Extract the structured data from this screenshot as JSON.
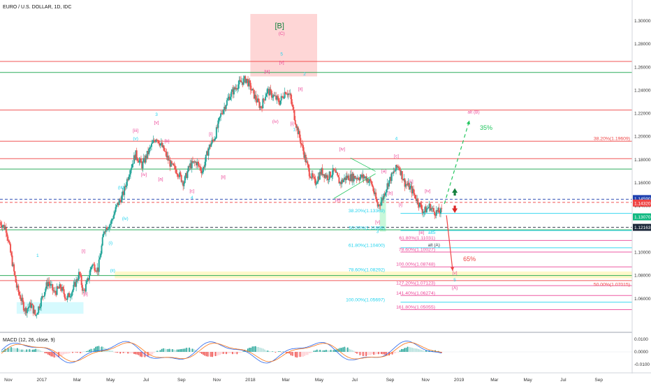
{
  "header": {
    "title": "EURO / U.S. DOLLAR, 1D, IDC"
  },
  "macd": {
    "label": "MACD (12, 26, close, 9)",
    "ticks": [
      "0.0100",
      "0.0000",
      "-0.0100"
    ]
  },
  "price_axis": {
    "ticks": [
      "1.30000",
      "1.28000",
      "1.26000",
      "1.24000",
      "1.22000",
      "1.20000",
      "1.18000",
      "1.16000",
      "1.14000",
      "1.12000",
      "1.10000",
      "1.08000",
      "1.06000"
    ],
    "badges": [
      {
        "text": "1.14590",
        "price": 1.1459,
        "color": "#1e40af"
      },
      {
        "text": "1.14320",
        "price": 1.1432,
        "color": "#ef4444"
      },
      {
        "text": "1.13070",
        "price": 1.1307,
        "color": "#10b981"
      },
      {
        "text": "1.12163",
        "price": 1.12163,
        "color": "#1e293b"
      }
    ]
  },
  "time_axis": {
    "labels": [
      "Nov",
      "2017",
      "Mar",
      "May",
      "Jul",
      "Sep",
      "Nov",
      "2018",
      "Mar",
      "May",
      "Jul",
      "Sep",
      "Nov",
      "2019",
      "Mar",
      "May",
      "Jul",
      "Sep"
    ]
  },
  "fib_labels": [
    {
      "text": "38.20%(1.19609)",
      "price": 1.19609,
      "color": "#ef4444"
    },
    {
      "text": "38.20%(1.13369)",
      "price": 1.13369,
      "color": "#22d3ee"
    },
    {
      "text": "50.00%(1.11886)",
      "price": 1.11886,
      "color": "#22d3ee"
    },
    {
      "text": "61.80%(1.11031)",
      "price": 1.11031,
      "color": "#ec4899"
    },
    {
      "text": "61.80%(1.10400)",
      "price": 1.104,
      "color": "#22d3ee"
    },
    {
      "text": "78.60%(1.10027)",
      "price": 1.10027,
      "color": "#ec4899"
    },
    {
      "text": "100.00%(1.08748)",
      "price": 1.08748,
      "color": "#ec4899"
    },
    {
      "text": "78.60%(1.08292)",
      "price": 1.08292,
      "color": "#22d3ee"
    },
    {
      "text": "127.20%(1.07123)",
      "price": 1.07123,
      "color": "#ec4899"
    },
    {
      "text": "50.00%(1.07015)",
      "price": 1.07015,
      "color": "#ef4444"
    },
    {
      "text": "141.40%(1.06274)",
      "price": 1.06274,
      "color": "#ec4899"
    },
    {
      "text": "100.00%(1.05697)",
      "price": 1.05697,
      "color": "#22d3ee"
    },
    {
      "text": "161.80%(1.05055)",
      "price": 1.05055,
      "color": "#ec4899"
    }
  ],
  "wave_labels": [
    {
      "text": "[B]",
      "date": 2018.14,
      "price": 1.2935,
      "color": "#15803d"
    },
    {
      "text": "(C)",
      "date": 2018.15,
      "price": 1.288,
      "color": "#ec4899"
    },
    {
      "text": "5",
      "date": 2018.15,
      "price": 1.27,
      "color": "#22d3ee"
    },
    {
      "text": "[v]",
      "date": 2018.15,
      "price": 1.263,
      "color": "#ec4899"
    },
    {
      "text": "[iii]",
      "date": 2018.08,
      "price": 1.255,
      "color": "#ec4899"
    },
    {
      "text": "2",
      "date": 2018.26,
      "price": 1.253,
      "color": "#22d3ee"
    },
    {
      "text": "[ii]",
      "date": 2018.24,
      "price": 1.24,
      "color": "#ec4899"
    },
    {
      "text": "(iv)",
      "date": 2018.12,
      "price": 1.212,
      "color": "#ec4899"
    },
    {
      "text": "[i]",
      "date": 2018.2,
      "price": 1.21,
      "color": "#ec4899"
    },
    {
      "text": "1",
      "date": 2018.21,
      "price": 1.205,
      "color": "#22d3ee"
    },
    {
      "text": "3",
      "date": 2017.55,
      "price": 1.218,
      "color": "#22d3ee"
    },
    {
      "text": "[v]",
      "date": 2017.55,
      "price": 1.211,
      "color": "#ec4899"
    },
    {
      "text": "[iii]",
      "date": 2017.45,
      "price": 1.204,
      "color": "#ec4899"
    },
    {
      "text": "(v)",
      "date": 2017.45,
      "price": 1.197,
      "color": "#22d3ee"
    },
    {
      "text": "[b]",
      "date": 2017.6,
      "price": 1.195,
      "color": "#ec4899"
    },
    {
      "text": "[i]",
      "date": 2017.81,
      "price": 1.201,
      "color": "#ec4899"
    },
    {
      "text": "[iv]",
      "date": 2017.49,
      "price": 1.166,
      "color": "#ec4899"
    },
    {
      "text": "[a]",
      "date": 2017.57,
      "price": 1.162,
      "color": "#ec4899"
    },
    {
      "text": "[c]",
      "date": 2017.72,
      "price": 1.152,
      "color": "#ec4899"
    },
    {
      "text": "4",
      "date": 2017.72,
      "price": 1.146,
      "color": "#22d3ee"
    },
    {
      "text": "[ii]",
      "date": 2017.87,
      "price": 1.164,
      "color": "#ec4899"
    },
    {
      "text": "(iii)",
      "date": 2017.38,
      "price": 1.155,
      "color": "#22d3ee"
    },
    {
      "text": "(iv)",
      "date": 2017.4,
      "price": 1.128,
      "color": "#22d3ee"
    },
    {
      "text": "(i)",
      "date": 2017.33,
      "price": 1.107,
      "color": "#22d3ee"
    },
    {
      "text": "(ii)",
      "date": 2017.34,
      "price": 1.083,
      "color": "#22d3ee"
    },
    {
      "text": "[i]",
      "date": 2017.2,
      "price": 1.1,
      "color": "#ec4899"
    },
    {
      "text": "[ii]",
      "date": 2017.21,
      "price": 1.063,
      "color": "#ec4899"
    },
    {
      "text": "1",
      "date": 2016.98,
      "price": 1.096,
      "color": "#22d3ee"
    },
    {
      "text": "[iv]",
      "date": 2018.44,
      "price": 1.188,
      "color": "#ec4899"
    },
    {
      "text": "[a]",
      "date": 2018.64,
      "price": 1.169,
      "color": "#ec4899"
    },
    {
      "text": "4",
      "date": 2018.7,
      "price": 1.197,
      "color": "#22d3ee"
    },
    {
      "text": "[c]",
      "date": 2018.7,
      "price": 1.182,
      "color": "#ec4899"
    },
    {
      "text": "[b]",
      "date": 2018.67,
      "price": 1.15,
      "color": "#ec4899"
    },
    {
      "text": "[iii]",
      "date": 2018.42,
      "price": 1.144,
      "color": "#ec4899"
    },
    {
      "text": "[v]",
      "date": 2018.61,
      "price": 1.125,
      "color": "#ec4899"
    },
    {
      "text": "3",
      "date": 2018.61,
      "price": 1.117,
      "color": "#22d3ee"
    },
    {
      "text": "[ii]",
      "date": 2018.77,
      "price": 1.16,
      "color": "#ec4899"
    },
    {
      "text": "[iv]",
      "date": 2018.85,
      "price": 1.152,
      "color": "#ec4899"
    },
    {
      "text": "[i]",
      "date": 2018.72,
      "price": 1.14,
      "color": "#ec4899"
    },
    {
      "text": "[iii]",
      "date": 2018.82,
      "price": 1.116,
      "color": "#ec4899"
    },
    {
      "text": "alt5",
      "date": 2018.87,
      "price": 1.116,
      "color": "#22d3ee"
    },
    {
      "text": "alt (A)",
      "date": 2018.88,
      "price": 1.105,
      "color": "#374151"
    },
    {
      "text": "alt (B)",
      "date": 2019.07,
      "price": 1.22,
      "color": "#ec4899"
    },
    {
      "text": "[v]",
      "date": 2018.98,
      "price": 1.081,
      "color": "#ec4899"
    },
    {
      "text": "5",
      "date": 2018.98,
      "price": 1.075,
      "color": "#22d3ee"
    },
    {
      "text": "(A)",
      "date": 2018.98,
      "price": 1.068,
      "color": "#ec4899"
    }
  ],
  "projections": [
    {
      "text": "35%",
      "date": 2019.1,
      "price": 1.206,
      "color": "#22c55e"
    },
    {
      "text": "65%",
      "date": 2019.02,
      "price": 1.0925,
      "color": "#ef4444"
    }
  ],
  "chart_data": {
    "type": "candlestick",
    "symbol": "EURUSD",
    "timeframe": "1D",
    "ylim": [
      1.046,
      1.306
    ],
    "x_range": [
      2016.8,
      2019.83
    ],
    "ohlc_path": {
      "dates": [
        2016.8,
        2016.83,
        2016.86,
        2016.88,
        2016.92,
        2016.95,
        2016.97,
        2017.0,
        2017.03,
        2017.06,
        2017.09,
        2017.12,
        2017.15,
        2017.18,
        2017.2,
        2017.22,
        2017.24,
        2017.27,
        2017.3,
        2017.33,
        2017.36,
        2017.39,
        2017.42,
        2017.45,
        2017.48,
        2017.52,
        2017.55,
        2017.58,
        2017.62,
        2017.65,
        2017.68,
        2017.71,
        2017.74,
        2017.77,
        2017.8,
        2017.83,
        2017.86,
        2017.9,
        2017.94,
        2017.98,
        2018.02,
        2018.05,
        2018.08,
        2018.11,
        2018.14,
        2018.17,
        2018.19,
        2018.22,
        2018.25,
        2018.28,
        2018.31,
        2018.34,
        2018.37,
        2018.4,
        2018.43,
        2018.46,
        2018.49,
        2018.52,
        2018.55,
        2018.58,
        2018.61,
        2018.63,
        2018.66,
        2018.69,
        2018.71,
        2018.74,
        2018.77,
        2018.8,
        2018.83,
        2018.86,
        2018.88,
        2018.9,
        2018.92
      ],
      "close": [
        1.126,
        1.12,
        1.09,
        1.07,
        1.05,
        1.055,
        1.045,
        1.06,
        1.075,
        1.065,
        1.07,
        1.06,
        1.068,
        1.082,
        1.065,
        1.075,
        1.09,
        1.085,
        1.12,
        1.125,
        1.14,
        1.15,
        1.17,
        1.185,
        1.175,
        1.19,
        1.2,
        1.19,
        1.175,
        1.17,
        1.16,
        1.175,
        1.178,
        1.17,
        1.19,
        1.2,
        1.22,
        1.235,
        1.245,
        1.25,
        1.235,
        1.225,
        1.24,
        1.235,
        1.23,
        1.24,
        1.235,
        1.21,
        1.19,
        1.17,
        1.16,
        1.17,
        1.165,
        1.17,
        1.16,
        1.165,
        1.165,
        1.165,
        1.165,
        1.16,
        1.14,
        1.145,
        1.16,
        1.17,
        1.175,
        1.16,
        1.155,
        1.145,
        1.135,
        1.14,
        1.135,
        1.135,
        1.135
      ],
      "last": 1.1307
    },
    "horizontal_levels": [
      {
        "price": 1.265,
        "color": "#ef4444"
      },
      {
        "price": 1.2555,
        "color": "#16a34a"
      },
      {
        "price": 1.223,
        "color": "#ef4444"
      },
      {
        "price": 1.19609,
        "color": "#ef4444"
      },
      {
        "price": 1.181,
        "color": "#ef4444"
      },
      {
        "price": 1.172,
        "color": "#16a34a"
      },
      {
        "price": 1.1459,
        "color": "#1e40af",
        "style": "dashed"
      },
      {
        "price": 1.1432,
        "color": "#ef4444",
        "style": "dashed"
      },
      {
        "price": 1.12163,
        "color": "#1e293b",
        "style": "dashed"
      },
      {
        "price": 1.1195,
        "color": "#16a34a"
      },
      {
        "price": 1.08,
        "color": "#16a34a"
      },
      {
        "price": 1.0756,
        "color": "#ef4444"
      },
      {
        "price": 1.13369,
        "color": "#22d3ee"
      },
      {
        "price": 1.11886,
        "color": "#22d3ee"
      },
      {
        "price": 1.11031,
        "color": "#ec4899"
      },
      {
        "price": 1.104,
        "color": "#22d3ee"
      },
      {
        "price": 1.10027,
        "color": "#ec4899"
      },
      {
        "price": 1.08748,
        "color": "#ec4899"
      },
      {
        "price": 1.07123,
        "color": "#ec4899"
      },
      {
        "price": 1.06274,
        "color": "#ec4899"
      },
      {
        "price": 1.05697,
        "color": "#22d3ee"
      },
      {
        "price": 1.05055,
        "color": "#ec4899"
      }
    ],
    "zones": [
      {
        "from_date": 2018.0,
        "to_date": 2018.32,
        "price_high": 1.306,
        "price_low": 1.252,
        "color": "#fca5a5"
      },
      {
        "from_date": 2017.35,
        "to_date": 2019.83,
        "price_high": 1.0835,
        "price_low": 1.0775,
        "color": "#fef08a"
      },
      {
        "from_date": 2016.88,
        "to_date": 2017.2,
        "price_high": 1.057,
        "price_low": 1.047,
        "color": "#a5f3fc"
      },
      {
        "from_date": 2018.62,
        "to_date": 2018.65,
        "price_high": 1.148,
        "price_low": 1.118,
        "color": "#86efac"
      }
    ],
    "projection_arrows": [
      {
        "label": "35%",
        "from": [
          2018.93,
          1.142
        ],
        "to": [
          2019.05,
          1.214
        ],
        "color": "#22c55e"
      },
      {
        "label": "65%",
        "from": [
          2018.94,
          1.132
        ],
        "to": [
          2018.97,
          1.084
        ],
        "color": "#ef4444"
      }
    ]
  }
}
